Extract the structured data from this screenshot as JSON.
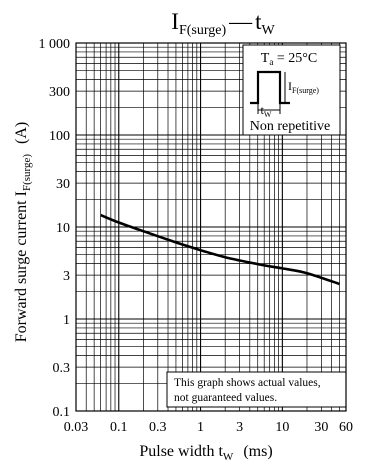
{
  "chart_data": {
    "type": "line",
    "title": {
      "main": "I",
      "sub": "F(surge)",
      "dash": "—",
      "main2": "t",
      "sub2": "W"
    },
    "xlabel": {
      "main": "Pulse width  t",
      "sub": "W",
      "unit": "(ms)"
    },
    "ylabel": {
      "main": "Forward surge current  I",
      "sub": "F(surge)",
      "unit": "(A)"
    },
    "x_scale": "log",
    "y_scale": "log",
    "xlim": [
      0.03,
      60
    ],
    "ylim": [
      0.1,
      1000
    ],
    "x_ticks": [
      {
        "value": 0.03,
        "label": "0.03"
      },
      {
        "value": 0.1,
        "label": "0.1"
      },
      {
        "value": 0.3,
        "label": "0.3"
      },
      {
        "value": 1,
        "label": "1"
      },
      {
        "value": 3,
        "label": "3"
      },
      {
        "value": 10,
        "label": "10"
      },
      {
        "value": 30,
        "label": "30"
      },
      {
        "value": 60,
        "label": "60"
      }
    ],
    "y_ticks": [
      {
        "value": 0.1,
        "label": "0.1"
      },
      {
        "value": 0.3,
        "label": "0.3"
      },
      {
        "value": 1,
        "label": "1"
      },
      {
        "value": 3,
        "label": "3"
      },
      {
        "value": 10,
        "label": "10"
      },
      {
        "value": 30,
        "label": "30"
      },
      {
        "value": 100,
        "label": "100"
      },
      {
        "value": 300,
        "label": "300"
      },
      {
        "value": 1000,
        "label": "1 000"
      }
    ],
    "grid": true,
    "series": [
      {
        "x": [
          0.06,
          0.1,
          0.2,
          0.5,
          1,
          2,
          5,
          10,
          20,
          50
        ],
        "y": [
          13.5,
          11.2,
          9.0,
          6.8,
          5.6,
          4.7,
          3.95,
          3.55,
          3.15,
          2.4
        ]
      }
    ],
    "annotations": {
      "condition": {
        "main": "T",
        "sub": "a",
        "rest": " = 25°C"
      },
      "pulse_label": {
        "main": "I",
        "sub": "F(surge)"
      },
      "pulse_width_label": {
        "main": "t",
        "sub": "W"
      },
      "note": "Non repetitive",
      "disclaimer": [
        "This graph shows actual values,",
        "not guaranteed values."
      ]
    }
  }
}
